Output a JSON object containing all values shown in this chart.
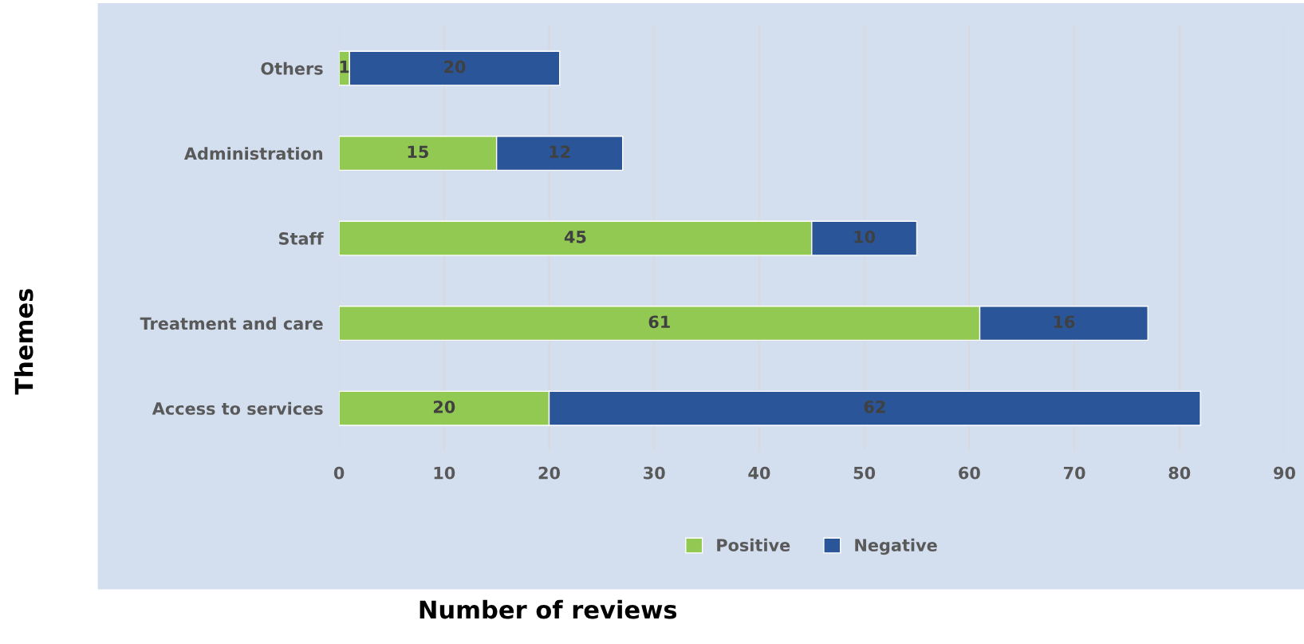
{
  "chart_data": {
    "type": "bar",
    "orientation": "horizontal",
    "stacked": true,
    "categories": [
      "Others",
      "Administration",
      "Staff",
      "Treatment and care",
      "Access to services"
    ],
    "series": [
      {
        "name": "Positive",
        "color": "#92c953",
        "values": [
          1,
          15,
          45,
          61,
          20
        ]
      },
      {
        "name": "Negative",
        "color": "#2a5699",
        "values": [
          20,
          12,
          10,
          16,
          62
        ]
      }
    ],
    "xlabel": "Number of reviews",
    "ylabel": "Themes",
    "xlim": [
      0,
      90
    ],
    "xticks": [
      0,
      10,
      20,
      30,
      40,
      50,
      60,
      70,
      80,
      90
    ],
    "grid": "x",
    "legend": "bottom",
    "data_labels": true
  }
}
